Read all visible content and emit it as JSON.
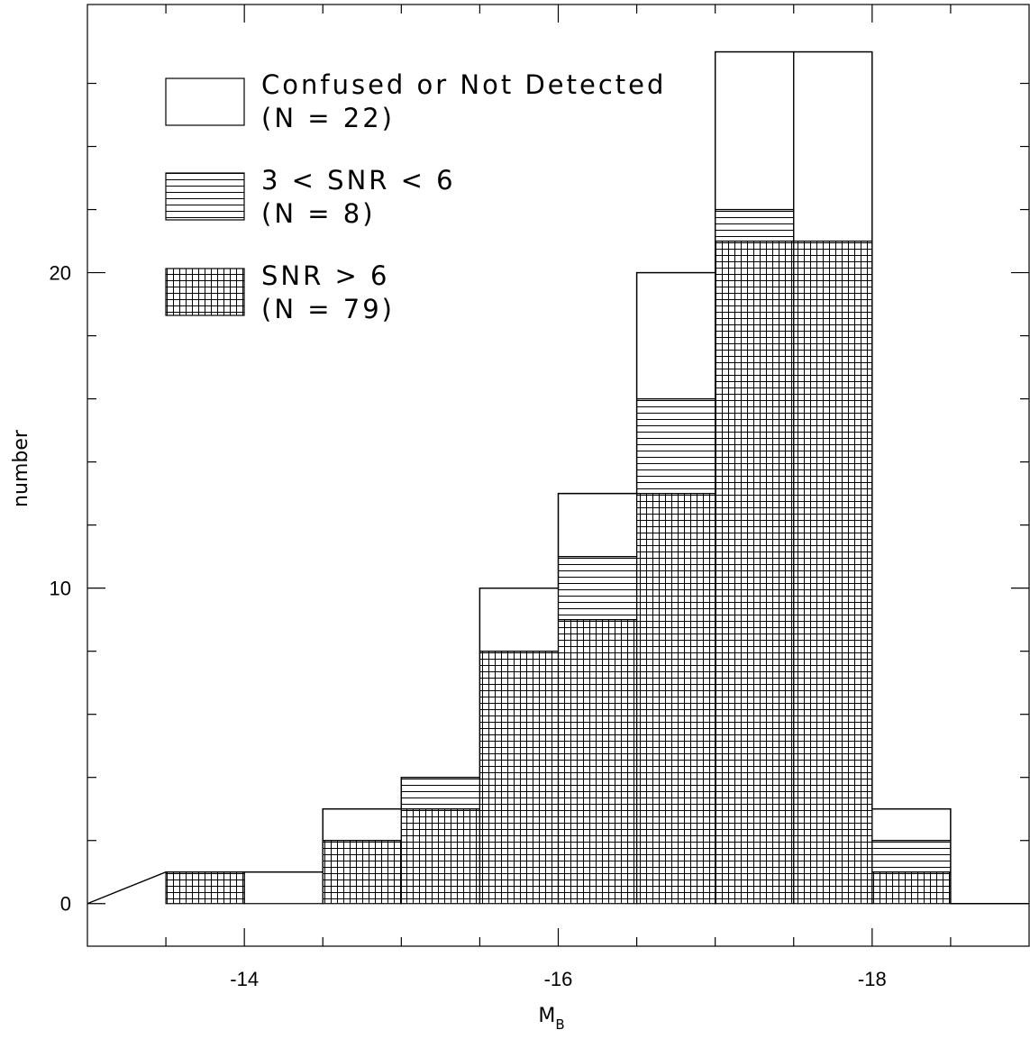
{
  "chart_data": {
    "type": "bar",
    "subtype": "stacked-step-histogram",
    "title": "",
    "xlabel": "M",
    "xlabel_subscript": "B",
    "ylabel": "number",
    "xlim": [
      -13,
      -19
    ],
    "ylim": [
      -1.35,
      28.5
    ],
    "x_reversed": true,
    "x_major_ticks": [
      -14,
      -16,
      -18
    ],
    "x_major_tick_labels": [
      "-14",
      "-16",
      "-18"
    ],
    "x_minor_ticks": [
      -13.5,
      -14.5,
      -15,
      -15.5,
      -16.5,
      -17,
      -17.5,
      -18.5
    ],
    "y_major_ticks": [
      0,
      10,
      20
    ],
    "y_major_tick_labels": [
      "0",
      "10",
      "20"
    ],
    "y_minor_ticks": [
      2,
      4,
      6,
      8,
      12,
      14,
      16,
      18,
      22,
      24,
      26
    ],
    "grid": false,
    "legend_position": "top-left",
    "bins": [
      {
        "x_start": -13.5,
        "x_end": -14.0
      },
      {
        "x_start": -14.0,
        "x_end": -14.5
      },
      {
        "x_start": -14.5,
        "x_end": -15.0
      },
      {
        "x_start": -15.0,
        "x_end": -15.5
      },
      {
        "x_start": -15.5,
        "x_end": -16.0
      },
      {
        "x_start": -16.0,
        "x_end": -16.5
      },
      {
        "x_start": -16.5,
        "x_end": -17.0
      },
      {
        "x_start": -17.0,
        "x_end": -17.5
      },
      {
        "x_start": -17.5,
        "x_end": -18.0
      },
      {
        "x_start": -18.0,
        "x_end": -18.5
      }
    ],
    "series": [
      {
        "name": "SNR > 6",
        "count_label": "(N = 79)",
        "pattern": "crosshatch",
        "values": [
          1,
          0,
          2,
          3,
          8,
          9,
          13,
          21,
          21,
          1
        ]
      },
      {
        "name": "3 < SNR < 6",
        "count_label": "(N = 8)",
        "pattern": "horizontal-lines",
        "values": [
          0,
          0,
          0,
          1,
          0,
          2,
          3,
          1,
          0,
          1
        ]
      },
      {
        "name": "Confused or Not Detected",
        "count_label": "(N = 22)",
        "pattern": "open",
        "values": [
          0,
          1,
          1,
          0,
          2,
          2,
          4,
          5,
          6,
          1
        ]
      }
    ]
  }
}
